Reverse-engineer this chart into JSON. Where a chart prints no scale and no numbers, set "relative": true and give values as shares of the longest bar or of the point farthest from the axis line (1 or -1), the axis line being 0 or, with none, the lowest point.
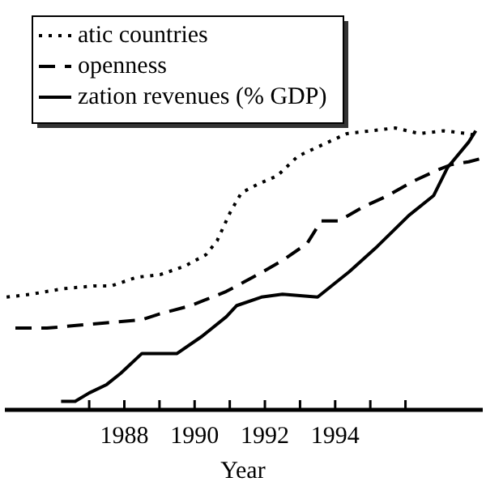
{
  "chart_data": {
    "type": "line",
    "relative": true,
    "xlabel": "Year",
    "legend": "top left",
    "grid": false,
    "marker": "none",
    "xlim": [
      1984.6,
      1998.2
    ],
    "xticks": [
      {
        "value": 1987,
        "label": null
      },
      1988,
      {
        "value": 1989,
        "label": null
      },
      1990,
      {
        "value": 1991,
        "label": null
      },
      1992,
      {
        "value": 1993,
        "label": null
      },
      1994,
      {
        "value": 1995,
        "label": null
      },
      {
        "value": 1996,
        "label": null
      }
    ],
    "series": [
      {
        "name": "atic countries",
        "color": "#000000",
        "line_style": "dotted",
        "x": [
          1984.65,
          1985.34,
          1986.26,
          1987.18,
          1987.64,
          1988.34,
          1989.03,
          1989.72,
          1990.32,
          1990.64,
          1991.01,
          1991.33,
          1991.79,
          1992.35,
          1992.94,
          1993.63,
          1994.33,
          1995.02,
          1995.71,
          1996.4,
          1997.09,
          1997.78,
          1998.11
        ],
        "values": [
          0.4,
          0.41,
          0.43,
          0.44,
          0.44,
          0.47,
          0.48,
          0.51,
          0.55,
          0.6,
          0.7,
          0.77,
          0.8,
          0.83,
          0.9,
          0.94,
          0.98,
          0.99,
          1,
          0.98,
          0.99,
          0.98,
          0.97
        ]
      },
      {
        "name": "openness",
        "color": "#000000",
        "line_style": "dashed",
        "x": [
          1984.9,
          1985.8,
          1986.7,
          1987.6,
          1988.5,
          1989.0,
          1989.9,
          1990.9,
          1991.8,
          1992.5,
          1993.2,
          1993.6,
          1994.1,
          1994.8,
          1995.5,
          1996.2,
          1996.9,
          1997.3,
          1997.8,
          1998.1
        ],
        "values": [
          0.29,
          0.29,
          0.3,
          0.31,
          0.32,
          0.34,
          0.37,
          0.42,
          0.48,
          0.53,
          0.59,
          0.67,
          0.67,
          0.72,
          0.76,
          0.81,
          0.85,
          0.87,
          0.88,
          0.89
        ]
      },
      {
        "name": "zation revenues (% GDP)",
        "color": "#000000",
        "line_style": "solid",
        "x": [
          1986.2,
          1986.6,
          1987.0,
          1987.5,
          1987.9,
          1988.5,
          1989.0,
          1989.5,
          1990.2,
          1990.9,
          1991.2,
          1991.9,
          1992.5,
          1993.5,
          1994.4,
          1995.2,
          1996.1,
          1996.8,
          1997.2,
          1997.8,
          1998.0
        ],
        "values": [
          0.03,
          0.03,
          0.06,
          0.09,
          0.13,
          0.2,
          0.2,
          0.2,
          0.26,
          0.33,
          0.37,
          0.4,
          0.41,
          0.4,
          0.49,
          0.58,
          0.69,
          0.76,
          0.86,
          0.95,
          0.99
        ]
      }
    ]
  }
}
